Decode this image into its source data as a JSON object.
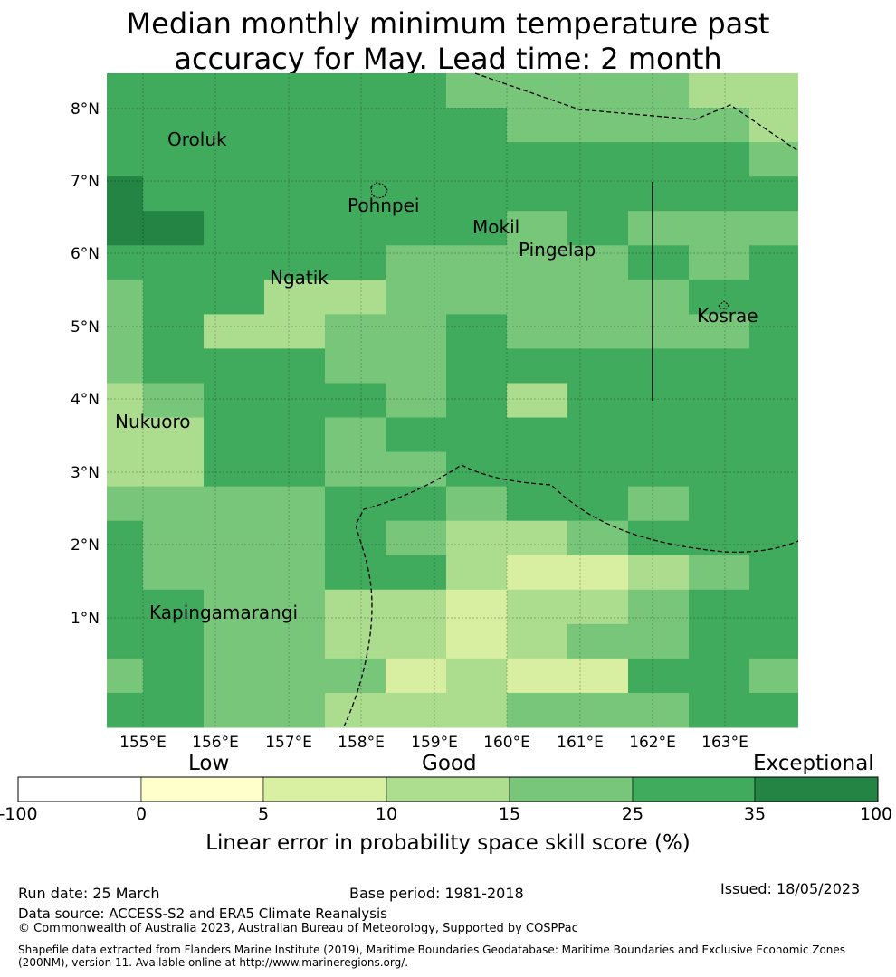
{
  "title": {
    "line1": "Median monthly minimum temperature past",
    "line2": "accuracy for May. Lead time: 2 month"
  },
  "map": {
    "lat_labels": [
      "8°N",
      "7°N",
      "6°N",
      "5°N",
      "4°N",
      "3°N",
      "2°N",
      "1°N"
    ],
    "lon_labels": [
      "155°E",
      "156°E",
      "157°E",
      "158°E",
      "159°E",
      "160°E",
      "161°E",
      "162°E",
      "163°E"
    ],
    "places": [
      "Oroluk",
      "Pohnpei",
      "Mokil",
      "Pingelap",
      "Ngatik",
      "Kosrae",
      "Nukuoro",
      "Kapingamarangi"
    ],
    "grid_rows": [
      "5444443333223",
      "5554444333323",
      "5555555444434",
      "6555555554443",
      "6655555343331",
      "5554433334344",
      "3542233333444",
      "3422334333344",
      "3445334444444",
      "2345534244444",
      "2244344454445",
      "2255334445544",
      "3333443443443",
      "4333432234445",
      "4333442112344",
      "4433221223444",
      "4433221233445",
      "3433312114434",
      "4433222333444"
    ],
    "colors": {
      "1": "#d8eea0",
      "2": "#acdd8e",
      "3": "#78c679",
      "4": "#41ab5d",
      "5": "#41ab5d",
      "6": "#238443"
    }
  },
  "colorbar": {
    "category_labels": [
      "Low",
      "Good",
      "Exceptional"
    ],
    "ticks": [
      "-100",
      "0",
      "5",
      "10",
      "15",
      "25",
      "35",
      "100"
    ],
    "colors": [
      "#ffffff",
      "#ffffcc",
      "#d9f0a3",
      "#addd8e",
      "#78c679",
      "#41ab5d",
      "#238443"
    ],
    "label": "Linear error in probability space skill score (%)"
  },
  "footer": {
    "run_date": "Run date: 25 March",
    "base_period": "Base period: 1981-2018",
    "issued": "Issued: 18/05/2023",
    "data_source": "Data source: ACCESS-S2 and ERA5 Climate Reanalysis",
    "copyright": "© Commonwealth of Australia 2023, Australian Bureau of Meteorology, Supported by COSPPac",
    "shapefile_line1": "Shapefile data extracted from Flanders Marine Institute (2019), Maritime Boundaries Geodatabase: Maritime Boundaries and Exclusive Economic Zones",
    "shapefile_line2": "(200NM), version 11. Available online at http://www.marineregions.org/."
  }
}
